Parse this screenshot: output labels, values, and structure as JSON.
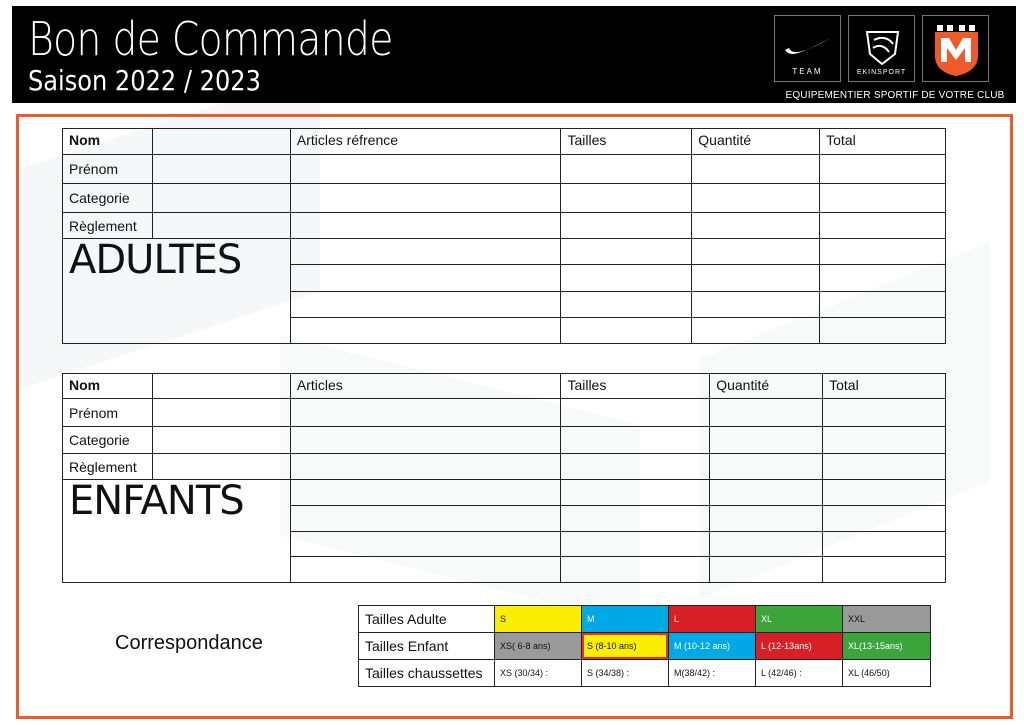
{
  "header": {
    "title": "Bon de Commande",
    "subtitle": "Saison 2022 / 2023",
    "tagline": "EQUIPEMENTIER SPORTIF DE VOTRE CLUB",
    "logos": {
      "nike_text": "TEAM",
      "ekinsport_text": "EKINSPORT",
      "club_icon": "club-crest-icon"
    }
  },
  "adults": {
    "section_title": "ADULTES",
    "columns": [
      "Nom",
      "Articles réfrence",
      "Tailles",
      "Quantité",
      "Total"
    ],
    "row_labels": [
      "Prénom",
      "Categorie",
      "Règlement"
    ]
  },
  "children": {
    "section_title": "ENFANTS",
    "columns": [
      "Nom",
      "Articles",
      "Tailles",
      "Quantité",
      "Total"
    ],
    "row_labels": [
      "Prénom",
      "Categorie",
      "Règlement"
    ]
  },
  "correspondance": {
    "label": "Correspondance",
    "rows": [
      {
        "label": "Tailles Adulte",
        "cells": [
          "S",
          "M",
          "L",
          "XL",
          "XXL"
        ]
      },
      {
        "label": "Tailles Enfant",
        "cells": [
          "XS( 6-8 ans)",
          "S (8-10 ans)",
          "M (10-12 ans)",
          "L (12-13ans)",
          "XL(13-15ans)"
        ]
      },
      {
        "label": "Tailles chaussettes",
        "cells": [
          "XS (30/34) :",
          "S (34/38) :",
          "M(38/42) :",
          "L (42/46) :",
          "XL (46/50)"
        ]
      }
    ]
  },
  "colors": {
    "accent_orange": "#ee5a2a",
    "yellow": "#fbee00",
    "blue": "#00a8e6",
    "red": "#d81f26",
    "green": "#3ba43b",
    "grey": "#9a9a9a"
  }
}
